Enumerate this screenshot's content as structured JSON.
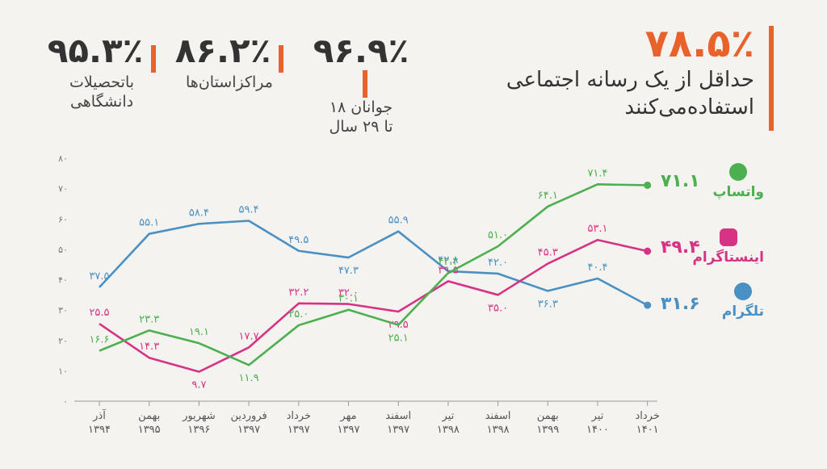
{
  "hero": {
    "value": "۷۸.۵٪",
    "label": "حداقل از یک  رسانه اجتماعی\nاستفاده‌می‌کنند",
    "color": "#e8632b"
  },
  "stats": [
    {
      "value": "۹۶.۹٪",
      "label": "جوانان ۱۸\nتا ۲۹ سال"
    },
    {
      "value": "۸۶.۲٪",
      "label": "مراکزاستان‌ها"
    },
    {
      "value": "۹۵.۳٪",
      "label": "باتحصیلات\nدانشگاهی"
    }
  ],
  "legend": [
    {
      "name": "واتساپ",
      "end_value": "۷۱.۱",
      "color": "#4caf50",
      "icon": "whatsapp-icon"
    },
    {
      "name": "اینستاگرام",
      "end_value": "۴۹.۴",
      "color": "#d63384",
      "icon": "instagram-icon"
    },
    {
      "name": "تلگرام",
      "end_value": "۳۱.۶",
      "color": "#4a90c2",
      "icon": "telegram-icon"
    }
  ],
  "chart_data": {
    "type": "line",
    "categories": [
      "آذر\n۱۳۹۴",
      "بهمن\n۱۳۹۵",
      "شهریور\n۱۳۹۶",
      "فروردین\n۱۳۹۷",
      "خرداد\n۱۳۹۷",
      "مهر\n۱۳۹۷",
      "اسفند\n۱۳۹۷",
      "تیر\n۱۳۹۸",
      "اسفند\n۱۳۹۸",
      "بهمن\n۱۳۹۹",
      "تیر\n۱۴۰۰",
      "خرداد\n۱۴۰۱"
    ],
    "ylim": [
      0,
      80
    ],
    "yticks": [
      "۰",
      "۱۰",
      "۲۰",
      "۳۰",
      "۴۰",
      "۵۰",
      "۶۰",
      "۷۰",
      "۸۰"
    ],
    "ytick_values": [
      0,
      10,
      20,
      30,
      40,
      50,
      60,
      70,
      80
    ],
    "grid": false,
    "series": [
      {
        "name": "تلگرام",
        "color": "#4a90c2",
        "values": [
          37.5,
          55.1,
          58.4,
          59.4,
          49.5,
          47.3,
          55.9,
          42.8,
          42.0,
          36.3,
          40.4,
          31.6
        ],
        "labels": [
          "۳۷.۵",
          "۵۵.۱",
          "۵۸.۴",
          "۵۹.۴",
          "۴۹.۵",
          "۴۷.۳",
          "۵۵.۹",
          "۴۲.۸",
          "۴۲.۰",
          "۳۶.۳",
          "۴۰.۴",
          ""
        ]
      },
      {
        "name": "اینستاگرام",
        "color": "#d63384",
        "values": [
          25.5,
          14.3,
          9.7,
          17.7,
          32.2,
          32.0,
          29.5,
          39.5,
          35.0,
          45.3,
          53.1,
          49.4
        ],
        "labels": [
          "۲۵.۵",
          "۱۴.۳",
          "۹.۷",
          "۱۷.۷",
          "۳۲.۲",
          "۳۲.۰",
          "۲۹.۵",
          "۳۹.۵",
          "۳۵.۰",
          "۴۵.۳",
          "۵۳.۱",
          ""
        ]
      },
      {
        "name": "واتساپ",
        "color": "#4caf50",
        "values": [
          16.6,
          23.3,
          19.1,
          11.9,
          25.0,
          30.1,
          25.1,
          42.2,
          51.0,
          64.1,
          71.4,
          71.1
        ],
        "labels": [
          "۱۶.۶",
          "۲۳.۳",
          "۱۹.۱",
          "۱۱.۹",
          "۲۵.۰",
          "۳۰.۱",
          "۲۵.۱",
          "۴۲.۲",
          "۵۱.۰",
          "۶۴.۱",
          "۷۱.۴",
          ""
        ]
      }
    ]
  }
}
